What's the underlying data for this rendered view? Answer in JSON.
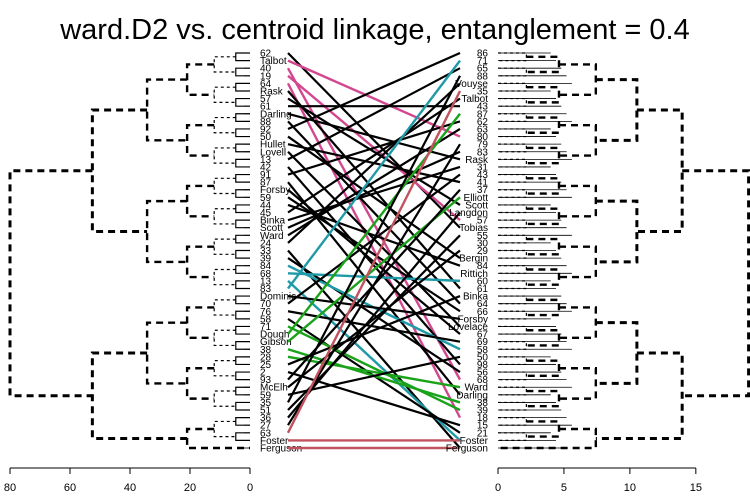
{
  "chart_data": {
    "type": "tanglegram",
    "title": "ward.D2 vs. centroid linkage,  entanglement = 0.4",
    "left_dendrogram": {
      "method": "ward.D2",
      "axis_ticks": [
        80,
        60,
        40,
        20,
        0
      ],
      "xlim": [
        80,
        0
      ],
      "leaf_labels": [
        "62",
        "Talbot",
        "40",
        "19",
        "64",
        "Rask",
        "57",
        "61",
        "Darling",
        "88",
        "92",
        "50",
        "Hullet",
        "Lovell",
        "13",
        "42",
        "91",
        "87",
        "Forsby",
        "59",
        "44",
        "45",
        "Binka",
        "Scott",
        "Ward",
        "24",
        "33",
        "39",
        "84",
        "68",
        "13",
        "83",
        "Dominic",
        "70",
        "76",
        "58",
        "71",
        "Dough",
        "Gibson",
        "38",
        "28",
        "25",
        "2",
        "93",
        "McElh",
        "59",
        "35",
        "51",
        "36",
        "27",
        "63",
        "Foster",
        "Ferguson"
      ],
      "merge_heights": [
        80,
        43,
        28,
        20,
        13,
        10,
        6
      ]
    },
    "right_dendrogram": {
      "method": "centroid",
      "axis_ticks": [
        0,
        5,
        10,
        15
      ],
      "xlim": [
        0,
        18.5
      ],
      "leaf_labels": [
        "86",
        "71",
        "65",
        "88",
        "Vouyse",
        "35",
        "Talbot",
        "43",
        "87",
        "62",
        "63",
        "80",
        "79",
        "83",
        "Rask",
        "31",
        "43",
        "41",
        "37",
        "Elliott",
        "Scott",
        "Langdon",
        "57",
        "Tobias",
        "55",
        "30",
        "29",
        "Bergin",
        "84",
        "Rittich",
        "60",
        "61",
        "Binka",
        "64",
        "66",
        "Forsby",
        "Lovelace",
        "67",
        "69",
        "58",
        "50",
        "98",
        "56",
        "68",
        "Ward",
        "Darling",
        "38",
        "39",
        "18",
        "15",
        "21",
        "Foster",
        "Ferguson"
      ],
      "merge_heights": [
        19,
        14,
        9,
        8,
        7,
        6,
        5
      ]
    },
    "connections": {
      "colors": [
        "#000000",
        "#d3478f",
        "#1aa21a",
        "#1f9aa6",
        "#c0535e"
      ]
    }
  }
}
